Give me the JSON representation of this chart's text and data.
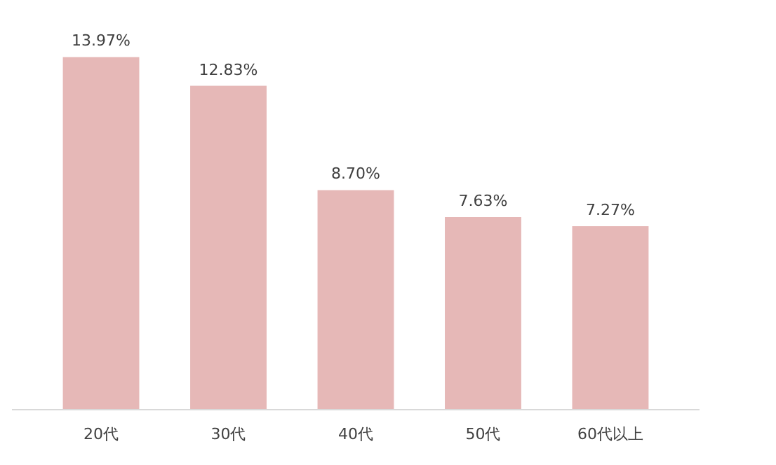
{
  "chart_data": {
    "type": "bar",
    "categories": [
      "20代",
      "30代",
      "40代",
      "50代",
      "60代以上"
    ],
    "values": [
      13.97,
      12.83,
      8.7,
      7.63,
      7.27
    ],
    "value_labels": [
      "13.97%",
      "12.83%",
      "8.70%",
      "7.63%",
      "7.27%"
    ],
    "color": "#e6b8b7",
    "grid": false
  }
}
